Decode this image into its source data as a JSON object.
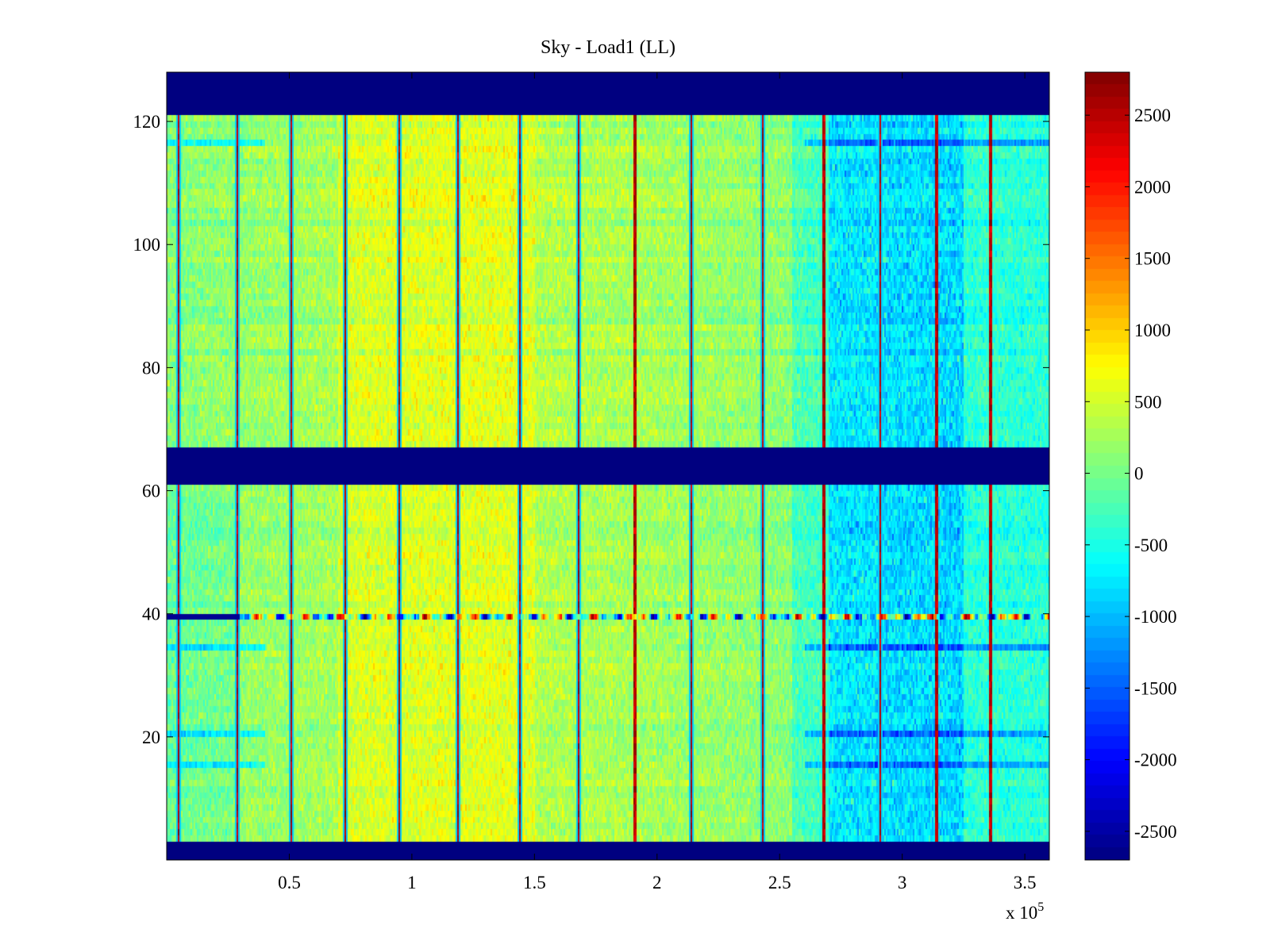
{
  "chart_data": {
    "type": "heatmap",
    "title": "Sky - Load1 (LL)",
    "xlabel": "",
    "ylabel": "",
    "x_multiplier_label": "x 10",
    "x_multiplier_exponent": "5",
    "xlim": [
      0,
      3.6
    ],
    "ylim": [
      0,
      128
    ],
    "x_ticks": [
      0.5,
      1,
      1.5,
      2,
      2.5,
      3,
      3.5
    ],
    "x_tick_labels": [
      "0.5",
      "1",
      "1.5",
      "2",
      "2.5",
      "3",
      "3.5"
    ],
    "y_ticks": [
      20,
      40,
      60,
      80,
      100,
      120
    ],
    "y_tick_labels": [
      "20",
      "40",
      "60",
      "80",
      "100",
      "120"
    ],
    "colormap": "jet",
    "clim": [
      -2700,
      2800
    ],
    "colorbar_ticks": [
      2500,
      2000,
      1500,
      1000,
      500,
      0,
      -500,
      -1000,
      -1500,
      -2000,
      -2500
    ],
    "colorbar_tick_labels": [
      "2500",
      "2000",
      "1500",
      "1000",
      "500",
      "0",
      "-500",
      "-1000",
      "-1500",
      "-2000",
      "-2500"
    ],
    "masked_channel_ranges": [
      [
        0,
        3
      ],
      [
        61,
        67
      ],
      [
        121,
        128
      ]
    ],
    "masked_value": -2700,
    "vertical_spike_x": [
      0.05,
      0.29,
      0.51,
      0.73,
      0.95,
      1.19,
      1.44,
      1.68,
      1.91,
      2.14,
      2.43,
      2.68,
      2.91,
      3.14,
      3.36
    ],
    "anomalous_channel": 39,
    "blue_regions_x": [
      [
        2.7,
        3.25
      ]
    ],
    "blue_low_channels": [
      20,
      15,
      34,
      116
    ]
  }
}
